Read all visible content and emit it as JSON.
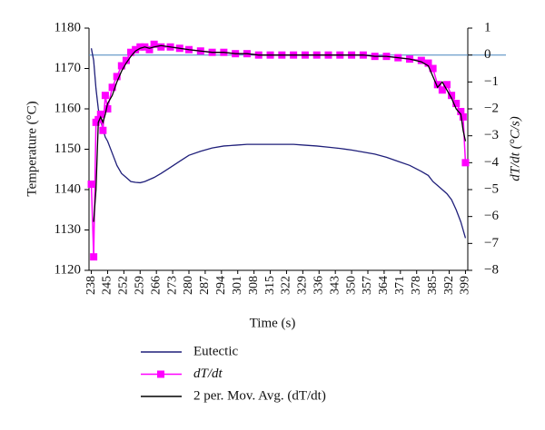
{
  "chart_data": {
    "type": "line",
    "xlabel": "Time (s)",
    "ylabel": "Temperature (°C)",
    "y2label": "dT/dt (°C/s)",
    "x": [
      238,
      239,
      240,
      241,
      242,
      243,
      244,
      245,
      247,
      249,
      251,
      253,
      255,
      257,
      259,
      261,
      263,
      265,
      268,
      272,
      276,
      280,
      285,
      290,
      295,
      300,
      305,
      310,
      315,
      320,
      325,
      330,
      335,
      340,
      345,
      350,
      355,
      360,
      365,
      370,
      375,
      380,
      383,
      385,
      387,
      389,
      391,
      393,
      395,
      397,
      398,
      399
    ],
    "xlim": [
      237,
      400
    ],
    "xticks": [
      238,
      245,
      252,
      259,
      266,
      273,
      280,
      287,
      294,
      301,
      308,
      315,
      322,
      329,
      336,
      343,
      350,
      357,
      364,
      371,
      378,
      385,
      392,
      399
    ],
    "ylim": [
      1120,
      1180
    ],
    "yticks": [
      1120,
      1130,
      1140,
      1150,
      1160,
      1170,
      1180
    ],
    "y2lim": [
      -8,
      1
    ],
    "y2ticks": [
      {
        "value": -8,
        "label": "−8"
      },
      {
        "value": -7,
        "label": "−7"
      },
      {
        "value": -6,
        "label": "−6"
      },
      {
        "value": -5,
        "label": "−5"
      },
      {
        "value": -4,
        "label": "−4"
      },
      {
        "value": -3,
        "label": "−3"
      },
      {
        "value": -2,
        "label": "−2"
      },
      {
        "value": -1,
        "label": "−1"
      },
      0,
      1
    ],
    "legend": "bottom-left",
    "series": [
      {
        "name": "Eutectic",
        "color": "#1f1f7a",
        "values": [
          1175,
          1172,
          1165,
          1160,
          1157,
          1155,
          1153,
          1152,
          1149,
          1146,
          1144,
          1143,
          1142,
          1141.8,
          1141.7,
          1142,
          1142.5,
          1143,
          1144,
          1145.5,
          1147,
          1148.5,
          1149.5,
          1150.3,
          1150.8,
          1151,
          1151.2,
          1151.2,
          1151.2,
          1151.2,
          1151.2,
          1151,
          1150.8,
          1150.5,
          1150.2,
          1149.8,
          1149.3,
          1148.8,
          1148,
          1147,
          1146,
          1144.5,
          1143.5,
          1142,
          1141,
          1140,
          1139,
          1137.5,
          1135,
          1132,
          1130,
          1128
        ]
      },
      {
        "name": "dT/dt",
        "color": "#ff00ff",
        "axis": "y2",
        "marker": "square",
        "values": [
          -4.8,
          -7.5,
          -2.5,
          -2.4,
          -2.2,
          -2.8,
          -1.5,
          -2.0,
          -1.2,
          -0.8,
          -0.4,
          -0.2,
          0.1,
          0.2,
          0.3,
          0.3,
          0.2,
          0.4,
          0.3,
          0.3,
          0.25,
          0.2,
          0.15,
          0.1,
          0.1,
          0.05,
          0.05,
          0,
          0,
          0,
          0,
          0,
          0,
          0,
          0,
          0,
          0,
          -0.05,
          -0.05,
          -0.1,
          -0.15,
          -0.2,
          -0.3,
          -0.5,
          -1.1,
          -1.3,
          -1.1,
          -1.5,
          -1.8,
          -2.1,
          -2.3,
          -4.0
        ]
      },
      {
        "name": "2 per. Mov. Avg. (dT/dt)",
        "color": "#000000",
        "axis": "y2",
        "values": [
          null,
          -6.2,
          -5.0,
          -2.5,
          -2.3,
          -2.5,
          -2.2,
          -1.8,
          -1.5,
          -1.0,
          -0.6,
          -0.3,
          -0.05,
          0.15,
          0.25,
          0.3,
          0.25,
          0.3,
          0.35,
          0.3,
          0.25,
          0.2,
          0.15,
          0.1,
          0.1,
          0.05,
          0.05,
          0,
          0,
          0,
          0,
          0,
          0,
          0,
          0,
          0,
          0,
          -0.05,
          -0.05,
          -0.1,
          -0.15,
          -0.25,
          -0.4,
          -0.8,
          -1.2,
          -1.0,
          -1.3,
          -1.6,
          -2.0,
          -2.2,
          -2.8,
          -3.2
        ]
      }
    ]
  }
}
